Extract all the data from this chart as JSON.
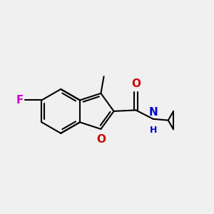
{
  "background_color": "#f0f0f0",
  "bond_color": "#000000",
  "bond_width": 1.5,
  "atoms": {
    "F": {
      "color": "#cc00cc",
      "fontsize": 11
    },
    "O": {
      "color": "#cc0000",
      "fontsize": 11
    },
    "N": {
      "color": "#0000cc",
      "fontsize": 11
    },
    "H": {
      "color": "#0000cc",
      "fontsize": 9
    }
  },
  "figsize": [
    3.0,
    3.0
  ],
  "dpi": 100
}
